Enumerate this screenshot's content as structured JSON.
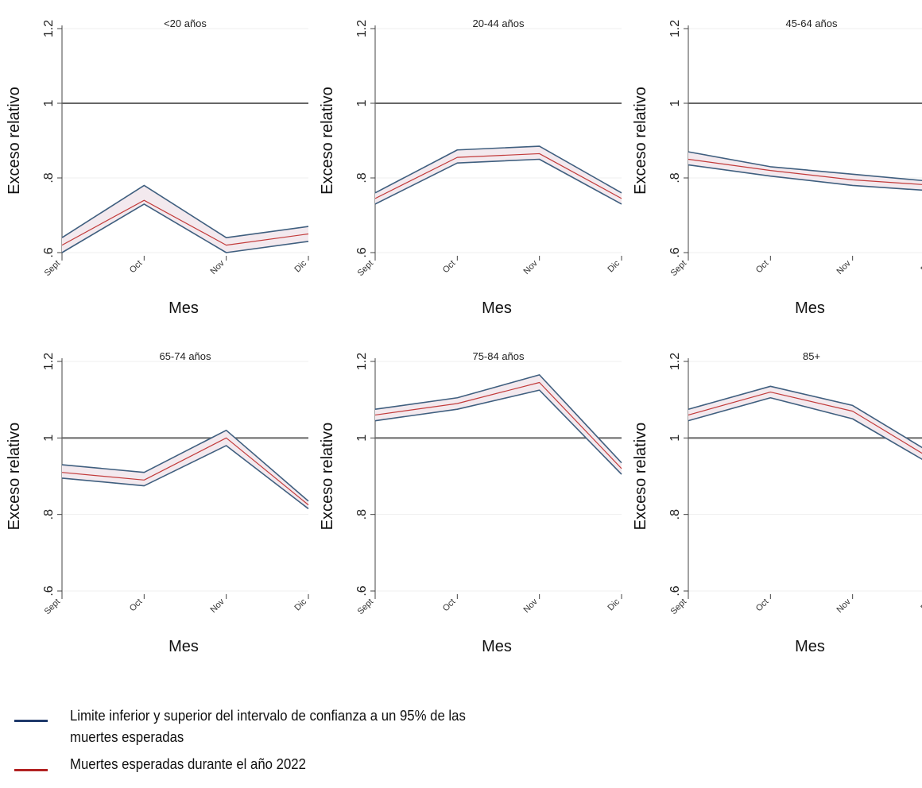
{
  "colors": {
    "ci_line": "#3f5f7f",
    "expected_line": "#c23b3b",
    "band_fill": "#f3e9ee",
    "reference_line": "#666666",
    "legend_ci": "#1f3a6b",
    "legend_expected": "#b22222"
  },
  "legend": {
    "ci_label": "Limite inferior y superior del intervalo de confianza a un 95% de las muertes esperadas",
    "expected_label": "Muertes esperadas durante el año 2022"
  },
  "chart_data": [
    {
      "type": "line",
      "title": "<20 años",
      "xlabel": "Mes",
      "ylabel": "Exceso relativo",
      "categories": [
        "Sept",
        "Oct",
        "Nov",
        "Dic"
      ],
      "y_ticks": [
        0.6,
        0.8,
        1,
        1.2
      ],
      "y_tick_labels": [
        ".6",
        ".8",
        "1",
        "1.2"
      ],
      "ylim": [
        0.6,
        1.2
      ],
      "reference_line": 1,
      "series": [
        {
          "role": "upper",
          "values": [
            0.64,
            0.78,
            0.64,
            0.67
          ]
        },
        {
          "role": "expected",
          "values": [
            0.62,
            0.74,
            0.62,
            0.65
          ]
        },
        {
          "role": "lower",
          "values": [
            0.6,
            0.73,
            0.6,
            0.63
          ]
        }
      ]
    },
    {
      "type": "line",
      "title": "20-44 años",
      "xlabel": "Mes",
      "ylabel": "Exceso relativo",
      "categories": [
        "Sept",
        "Oct",
        "Nov",
        "Dic"
      ],
      "y_ticks": [
        0.6,
        0.8,
        1,
        1.2
      ],
      "y_tick_labels": [
        ".6",
        ".8",
        "1",
        "1.2"
      ],
      "ylim": [
        0.6,
        1.2
      ],
      "reference_line": 1,
      "series": [
        {
          "role": "upper",
          "values": [
            0.76,
            0.875,
            0.885,
            0.76
          ]
        },
        {
          "role": "expected",
          "values": [
            0.745,
            0.855,
            0.865,
            0.745
          ]
        },
        {
          "role": "lower",
          "values": [
            0.73,
            0.84,
            0.85,
            0.73
          ]
        }
      ]
    },
    {
      "type": "line",
      "title": "45-64 años",
      "xlabel": "Mes",
      "ylabel": "Exceso relativo",
      "categories": [
        "Sept",
        "Oct",
        "Nov",
        "Dic"
      ],
      "y_ticks": [
        0.6,
        0.8,
        1,
        1.2
      ],
      "y_tick_labels": [
        ".6",
        ".8",
        "1",
        "1.2"
      ],
      "ylim": [
        0.6,
        1.2
      ],
      "reference_line": 1,
      "series": [
        {
          "role": "upper",
          "values": [
            0.87,
            0.83,
            0.81,
            0.79
          ]
        },
        {
          "role": "expected",
          "values": [
            0.85,
            0.82,
            0.795,
            0.78
          ]
        },
        {
          "role": "lower",
          "values": [
            0.835,
            0.805,
            0.78,
            0.765
          ]
        }
      ]
    },
    {
      "type": "line",
      "title": "65-74 años",
      "xlabel": "Mes",
      "ylabel": "Exceso relativo",
      "categories": [
        "Sept",
        "Oct",
        "Nov",
        "Dic"
      ],
      "y_ticks": [
        0.6,
        0.8,
        1,
        1.2
      ],
      "y_tick_labels": [
        ".6",
        ".8",
        "1",
        "1.2"
      ],
      "ylim": [
        0.6,
        1.2
      ],
      "reference_line": 1,
      "series": [
        {
          "role": "upper",
          "values": [
            0.93,
            0.91,
            1.02,
            0.835
          ]
        },
        {
          "role": "expected",
          "values": [
            0.91,
            0.89,
            1.0,
            0.825
          ]
        },
        {
          "role": "lower",
          "values": [
            0.895,
            0.875,
            0.98,
            0.815
          ]
        }
      ]
    },
    {
      "type": "line",
      "title": "75-84 años",
      "xlabel": "Mes",
      "ylabel": "Exceso relativo",
      "categories": [
        "Sept",
        "Oct",
        "Nov",
        "Dic"
      ],
      "y_ticks": [
        0.6,
        0.8,
        1,
        1.2
      ],
      "y_tick_labels": [
        ".6",
        ".8",
        "1",
        "1.2"
      ],
      "ylim": [
        0.6,
        1.2
      ],
      "reference_line": 1,
      "series": [
        {
          "role": "upper",
          "values": [
            1.075,
            1.105,
            1.165,
            0.935
          ]
        },
        {
          "role": "expected",
          "values": [
            1.06,
            1.09,
            1.145,
            0.92
          ]
        },
        {
          "role": "lower",
          "values": [
            1.045,
            1.075,
            1.125,
            0.905
          ]
        }
      ]
    },
    {
      "type": "line",
      "title": "85+",
      "xlabel": "Mes",
      "ylabel": "Exceso relativo",
      "categories": [
        "Sept",
        "Oct",
        "Nov",
        "Dic"
      ],
      "y_ticks": [
        0.6,
        0.8,
        1,
        1.2
      ],
      "y_tick_labels": [
        ".6",
        ".8",
        "1",
        "1.2"
      ],
      "ylim": [
        0.6,
        1.2
      ],
      "reference_line": 1,
      "series": [
        {
          "role": "upper",
          "values": [
            1.075,
            1.135,
            1.085,
            0.955
          ]
        },
        {
          "role": "expected",
          "values": [
            1.06,
            1.12,
            1.07,
            0.94
          ]
        },
        {
          "role": "lower",
          "values": [
            1.045,
            1.105,
            1.05,
            0.925
          ]
        }
      ]
    }
  ]
}
